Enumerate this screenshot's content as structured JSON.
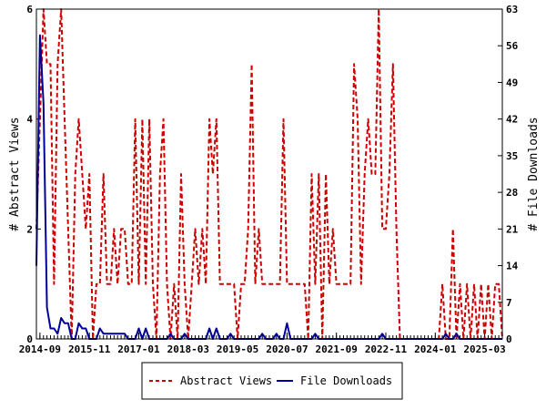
{
  "chart_data": {
    "type": "line",
    "title": "",
    "ylabel_left": "# Abstract Views",
    "ylabel_right": "# File Downloads",
    "ylim_left": [
      0,
      6
    ],
    "ylim_right": [
      0,
      63
    ],
    "yticks_left": [
      0,
      2,
      4,
      6
    ],
    "yticks_right": [
      0,
      7,
      14,
      21,
      28,
      35,
      42,
      49,
      56,
      63
    ],
    "x_range": [
      "2014-08",
      "2025-08"
    ],
    "xtick_labels": [
      "2014-09",
      "2015-11",
      "2017-01",
      "2018-03",
      "2019-05",
      "2020-07",
      "2021-09",
      "2022-11",
      "2024-01",
      "2025-03"
    ],
    "grid": false,
    "legend_position": "bottom",
    "series": [
      {
        "name": "Abstract Views",
        "axis": "left",
        "color": "#cc0000",
        "style": "dashed",
        "start": "2014-08",
        "values": [
          2,
          4,
          6,
          5,
          5,
          1,
          5,
          6,
          4,
          2,
          0,
          3,
          4,
          3,
          2,
          3,
          0,
          1,
          1,
          3,
          1,
          1,
          2,
          1,
          2,
          2,
          1,
          1,
          4,
          1,
          4,
          1,
          4,
          1,
          0,
          3,
          4,
          1,
          0,
          1,
          0,
          3,
          1,
          0,
          1,
          2,
          1,
          2,
          1,
          4,
          3,
          4,
          1,
          1,
          1,
          1,
          1,
          0,
          1,
          1,
          2,
          5,
          1,
          2,
          1,
          1,
          1,
          1,
          1,
          1,
          4,
          1,
          1,
          1,
          1,
          1,
          1,
          0,
          3,
          1,
          3,
          0,
          3,
          1,
          2,
          1,
          1,
          1,
          1,
          1,
          5,
          4,
          1,
          3,
          4,
          3,
          3,
          6,
          2,
          2,
          3,
          5,
          2,
          0,
          0,
          0,
          0,
          0,
          0,
          0,
          0,
          0,
          0,
          0,
          0,
          1,
          0,
          0,
          2,
          0,
          1,
          0,
          1,
          0,
          1,
          0,
          1,
          0,
          1,
          0,
          1,
          1,
          0
        ]
      },
      {
        "name": "File Downloads",
        "axis": "right",
        "color": "#000099",
        "style": "solid",
        "start": "2014-08",
        "values": [
          14,
          58,
          45,
          6,
          2,
          2,
          1,
          4,
          3,
          3,
          0,
          0,
          3,
          2,
          2,
          0,
          0,
          0,
          2,
          1,
          1,
          1,
          1,
          1,
          1,
          1,
          0,
          0,
          0,
          2,
          0,
          2,
          0,
          0,
          0,
          0,
          0,
          0,
          1,
          0,
          0,
          0,
          1,
          0,
          0,
          0,
          0,
          0,
          0,
          2,
          0,
          2,
          0,
          0,
          0,
          1,
          0,
          0,
          0,
          0,
          0,
          0,
          0,
          0,
          1,
          0,
          0,
          0,
          1,
          0,
          0,
          3,
          0,
          0,
          0,
          0,
          0,
          0,
          0,
          1,
          0,
          0,
          0,
          0,
          0,
          0,
          0,
          0,
          0,
          0,
          0,
          0,
          0,
          0,
          0,
          0,
          0,
          0,
          1,
          0,
          0,
          0,
          0,
          0,
          0,
          0,
          0,
          0,
          0,
          0,
          0,
          0,
          0,
          0,
          0,
          0,
          1,
          0,
          0,
          1,
          0,
          0,
          0,
          0,
          0,
          0,
          0,
          0,
          0,
          0,
          0,
          0,
          0
        ]
      }
    ]
  }
}
